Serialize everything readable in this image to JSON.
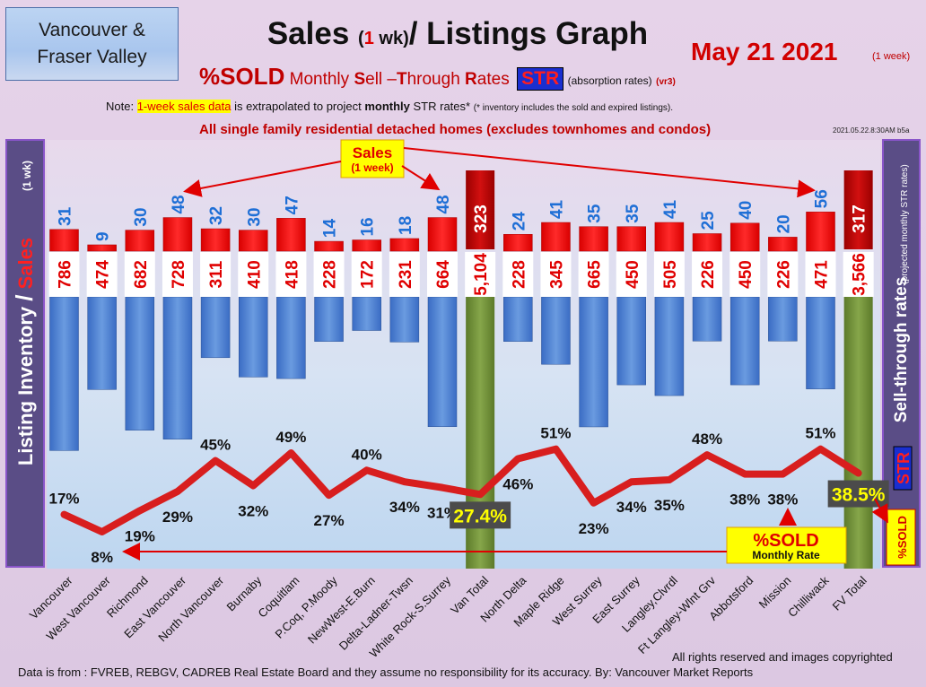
{
  "region": {
    "line1": "Vancouver &",
    "line2": "Fraser Valley"
  },
  "title": {
    "part1": "Sales ",
    "part2_open": "(",
    "part2_num": "1",
    "part2_close": " wk)",
    "part3": "/ Listings Graph"
  },
  "date": {
    "text": "May 21  2021",
    "note": "(1 week)"
  },
  "subtitle": {
    "sold": "%SOLD",
    "rest_a": " Monthly ",
    "s": "S",
    "rest_b": "ell –",
    "t": "T",
    "rest_c": "hrough ",
    "r": "R",
    "rest_d": "ates",
    "str": "STR",
    "absorb": "(absorption rates)",
    "vr": "(vr3)"
  },
  "note": {
    "pre": "Note: ",
    "hl": "1-week sales data",
    "mid": " is extrapolated to project ",
    "bold": "monthly",
    "post": " STR rates* ",
    "tiny": "(* inventory includes the sold and expired listings)."
  },
  "homes": "All single family residential detached homes (excludes townhomes and condos)",
  "stamp": "2021.05.22.8:30AM b5a",
  "left_axis": {
    "a": "Listing Inventory ",
    "slash": "/",
    "b": " Sales",
    "c": "(1 wk)"
  },
  "right_axis": {
    "a": "Sell-through rates",
    "b": "(projected monthly STR rates)",
    "str": "STR"
  },
  "sales_callout": {
    "title": "Sales",
    "sub": "(1 week)"
  },
  "sold_callout": {
    "title": "%SOLD",
    "sub": "Monthly Rate"
  },
  "side_sold": "%SOLD",
  "colors": {
    "sales": "#ee0000",
    "inventory": "#4a7fd4",
    "total": "#6f8f35",
    "line": "#d81e1e"
  },
  "chart_data": {
    "type": "bar",
    "categories": [
      "Vancouver",
      "West Vancouver",
      "Richmond",
      "East Vancouver",
      "North Vancouver",
      "Burnaby",
      "Coquitlam",
      "P.Coq, P.Moody",
      "NewWest-E.Burn",
      "Delta-Ladner-Twsn",
      "White Rock-S.Surrey",
      "Van Total",
      "North Delta",
      "Maple Ridge",
      "West Surrey",
      "East Surrey",
      "Langley,Clvrdl",
      "Ft Langley-Wlnt Grv",
      "Abbotsford",
      "Mission",
      "Chilliwack",
      "FV Total"
    ],
    "series": [
      {
        "name": "Sales",
        "values": [
          31,
          9,
          30,
          48,
          32,
          30,
          47,
          14,
          16,
          18,
          48,
          323,
          24,
          41,
          35,
          35,
          41,
          25,
          40,
          20,
          56,
          317
        ]
      },
      {
        "name": "Listing Inventory",
        "values": [
          786,
          474,
          682,
          728,
          311,
          410,
          418,
          228,
          172,
          231,
          664,
          5104,
          228,
          345,
          665,
          450,
          505,
          226,
          450,
          226,
          471,
          3566
        ]
      },
      {
        "name": "%SOLD",
        "values": [
          17,
          8,
          19,
          29,
          45,
          32,
          49,
          27,
          40,
          34,
          31,
          27.4,
          46,
          51,
          23,
          34,
          35,
          48,
          38,
          38,
          51,
          38.5
        ]
      }
    ],
    "value_labels": {
      "sales": [
        "31",
        "9",
        "30",
        "48",
        "32",
        "30",
        "47",
        "14",
        "16",
        "18",
        "48",
        "323",
        "24",
        "41",
        "35",
        "35",
        "41",
        "25",
        "40",
        "20",
        "56",
        "317"
      ],
      "inventory": [
        "786",
        "474",
        "682",
        "728",
        "311",
        "410",
        "418",
        "228",
        "172",
        "231",
        "664",
        "5,104",
        "228",
        "345",
        "665",
        "450",
        "505",
        "226",
        "450",
        "226",
        "471",
        "3,566"
      ],
      "pct": [
        "17%",
        "8%",
        "19%",
        "29%",
        "45%",
        "32%",
        "49%",
        "27%",
        "40%",
        "34%",
        "31%",
        "27.4%",
        "46%",
        "51%",
        "23%",
        "34%",
        "35%",
        "48%",
        "38%",
        "38%",
        "51%",
        "38.5%"
      ]
    },
    "totals": [
      "Van Total",
      "FV Total"
    ]
  },
  "footer": {
    "source": "Data is from : FVREB, REBGV, CADREB Real Estate Board and they assume no responsibility for its accuracy. By: Vancouver Market Reports",
    "rights": "All rights reserved and  images copyrighted"
  }
}
